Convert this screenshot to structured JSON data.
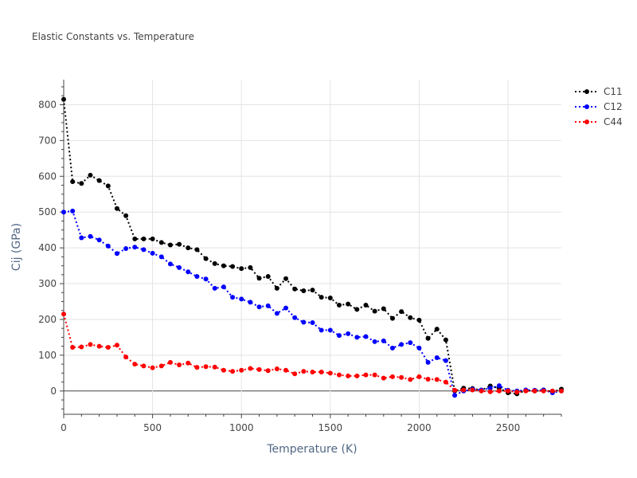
{
  "chart_data": {
    "type": "line",
    "title": "Elastic Constants vs. Temperature",
    "xlabel": "Temperature (K)",
    "ylabel": "Cij (GPa)",
    "xlim": [
      0,
      2800
    ],
    "ylim": [
      -65,
      870
    ],
    "x_ticks": [
      0,
      500,
      1000,
      1500,
      2000,
      2500
    ],
    "y_ticks": [
      0,
      100,
      200,
      300,
      400,
      500,
      600,
      700,
      800
    ],
    "grid": true,
    "legend_position": "top-right",
    "line_style": "dotted-with-markers",
    "x": [
      0,
      50,
      100,
      150,
      200,
      250,
      300,
      350,
      400,
      450,
      500,
      550,
      600,
      650,
      700,
      750,
      800,
      850,
      900,
      950,
      1000,
      1050,
      1100,
      1150,
      1200,
      1250,
      1300,
      1350,
      1400,
      1450,
      1500,
      1550,
      1600,
      1650,
      1700,
      1750,
      1800,
      1850,
      1900,
      1950,
      2000,
      2050,
      2100,
      2150,
      2200,
      2250,
      2300,
      2350,
      2400,
      2450,
      2500,
      2550,
      2600,
      2650,
      2700,
      2750,
      2800
    ],
    "series": [
      {
        "name": "C11",
        "color": "#000000",
        "values": [
          815,
          585,
          580,
          603,
          588,
          573,
          510,
          490,
          425,
          425,
          425,
          415,
          408,
          410,
          400,
          395,
          370,
          356,
          350,
          348,
          342,
          345,
          315,
          320,
          287,
          314,
          285,
          280,
          282,
          262,
          260,
          240,
          243,
          228,
          240,
          223,
          230,
          203,
          222,
          205,
          198,
          147,
          173,
          143,
          0,
          8,
          7,
          2,
          14,
          8,
          -5,
          -8,
          2,
          0,
          3,
          -2,
          5
        ]
      },
      {
        "name": "C12",
        "color": "#0000ff",
        "values": [
          500,
          503,
          428,
          432,
          422,
          405,
          384,
          398,
          402,
          395,
          385,
          375,
          355,
          345,
          333,
          320,
          313,
          287,
          291,
          262,
          257,
          248,
          235,
          238,
          217,
          232,
          205,
          192,
          191,
          170,
          170,
          155,
          160,
          150,
          152,
          138,
          140,
          120,
          130,
          135,
          120,
          80,
          93,
          85,
          -12,
          0,
          5,
          3,
          8,
          15,
          2,
          0,
          3,
          2,
          3,
          -5,
          0
        ]
      },
      {
        "name": "C44",
        "color": "#ff0000",
        "values": [
          215,
          122,
          123,
          130,
          125,
          122,
          128,
          95,
          75,
          70,
          65,
          70,
          80,
          73,
          78,
          66,
          68,
          67,
          58,
          55,
          58,
          63,
          60,
          57,
          62,
          58,
          48,
          55,
          53,
          53,
          50,
          45,
          42,
          42,
          45,
          45,
          36,
          40,
          38,
          32,
          40,
          33,
          32,
          25,
          2,
          3,
          3,
          0,
          -2,
          0,
          0,
          -3,
          0,
          0,
          0,
          0,
          0
        ]
      }
    ]
  }
}
